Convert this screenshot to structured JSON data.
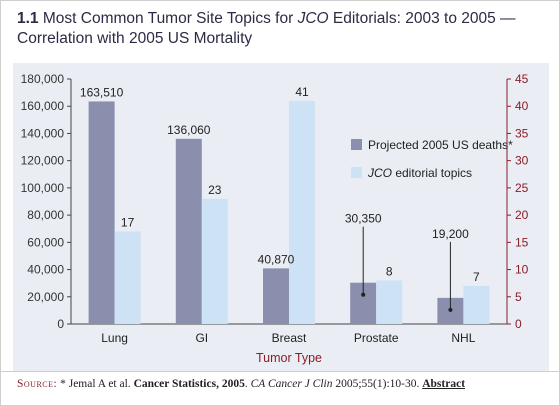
{
  "title": {
    "number": "1.1",
    "text_before": "Most Common Tumor Site Topics for ",
    "text_italic": "JCO",
    "text_after": " Editorials: 2003 to 2005 —",
    "line2": "Correlation with 2005 US Mortality"
  },
  "chart_data": {
    "type": "bar",
    "categories": [
      "Lung",
      "GI",
      "Breast",
      "Prostate",
      "NHL"
    ],
    "xlabel": "Tumor Type",
    "series": [
      {
        "name": "Projected 2005 US deaths*",
        "axis": "left",
        "values": [
          163510,
          136060,
          40870,
          30350,
          19200
        ],
        "labels": [
          "163,510",
          "136,060",
          "40,870",
          "30,350",
          "19,200"
        ],
        "color": "#8a8fae"
      },
      {
        "name": "editorial topics",
        "name_italic": "JCO",
        "axis": "right",
        "values": [
          17,
          23,
          41,
          8,
          7
        ],
        "labels": [
          "17",
          "23",
          "41",
          "8",
          "7"
        ],
        "color": "#cde2f5"
      }
    ],
    "y_left": {
      "min": 0,
      "max": 180000,
      "ticks": [
        "0",
        "20,000",
        "40,000",
        "60,000",
        "80,000",
        "100,000",
        "120,000",
        "140,000",
        "160,000",
        "180,000"
      ],
      "color": "#333333"
    },
    "y_right": {
      "min": 0,
      "max": 45,
      "ticks": [
        "0",
        "5",
        "10",
        "15",
        "20",
        "25",
        "30",
        "35",
        "40",
        "45"
      ],
      "color": "#8b1c2a"
    },
    "legend_position": "center-right",
    "grid": false,
    "xlabel_color": "#8b1c2a"
  },
  "source": {
    "label": "Source:",
    "star": "* Jemal A et al. ",
    "bold_title": "Cancer Statistics, 2005",
    "after_title": ". ",
    "journal_italic": "CA Cancer J Clin",
    "citation": " 2005;55(1):10-30. ",
    "link": "Abstract"
  }
}
